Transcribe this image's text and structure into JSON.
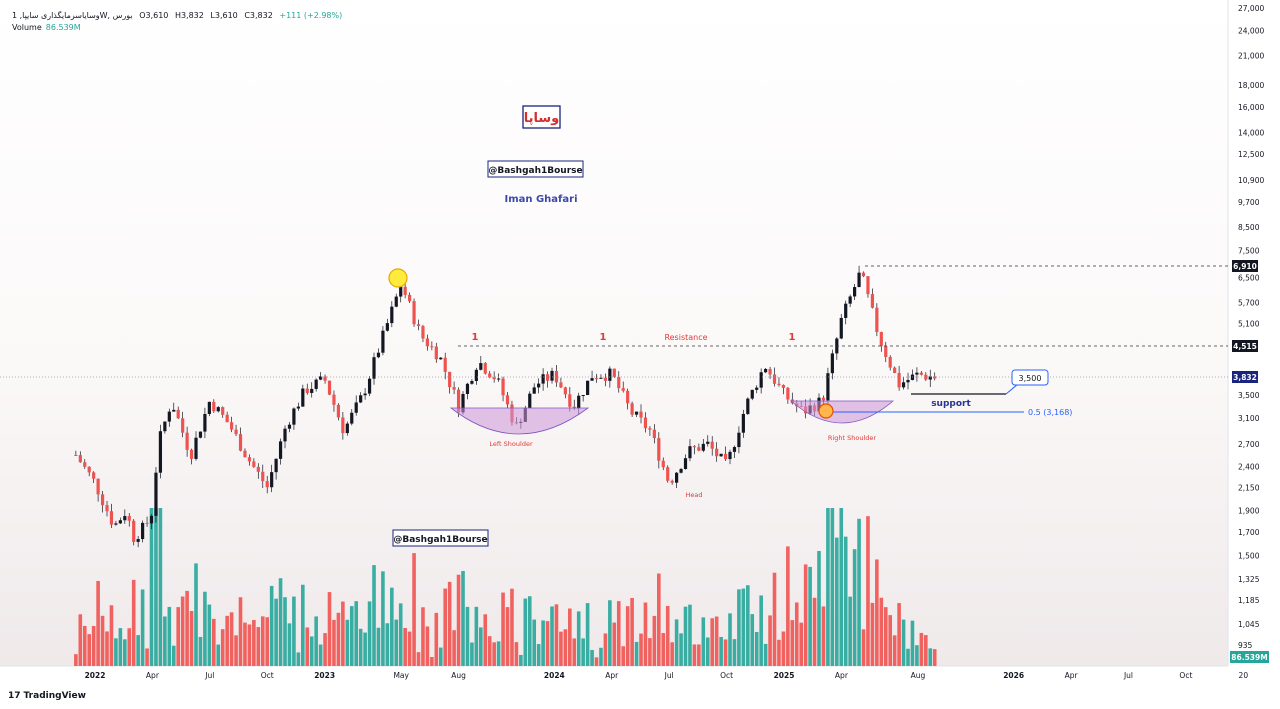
{
  "header": {
    "symbol": "وسایاسرمایگذاری سایپا, 1W, بورس",
    "open": "O3,610",
    "high": "H3,832",
    "low": "L3,610",
    "close": "C3,832",
    "change": "+111 (+2.98%)"
  },
  "volume": {
    "label": "Volume",
    "value": "86.539M"
  },
  "branding": {
    "tradingview": "TradingView",
    "tv_glyph": "17"
  },
  "colors": {
    "up": "#26a69a",
    "down": "#ef5350",
    "wick": "#131722",
    "accent_red": "#e53935",
    "accent_blue": "#2962ff",
    "purple": "#ce93d8",
    "yellow": "#ffeb3b",
    "navy": "#1a237e"
  },
  "annotations": {
    "logo_text": "وساپا",
    "handle_top": "@Bashgah1Bourse",
    "handle_bottom": "@Bashgah1Bourse",
    "author": "Iman Ghafari",
    "resistance": "Resistance",
    "support": "support",
    "left_shoulder": "Left Shoulder",
    "right_shoulder": "Right Shoulder",
    "head": "Head",
    "fib": "0.5 (3,168)",
    "callout": "3,500",
    "marker": "1"
  },
  "price_tags": {
    "high": "6,910",
    "resistance": "4,515",
    "last": "3,832",
    "volume": "86.539M"
  },
  "chart_data": {
    "type": "candlestick",
    "scale": "log",
    "timeframe": "1W",
    "price_ticks": [
      27000,
      24000,
      21000,
      18000,
      16000,
      14000,
      12500,
      10900,
      9700,
      8500,
      7500,
      6500,
      5700,
      5100,
      3500,
      3100,
      2700,
      2400,
      2150,
      1900,
      1700,
      1500,
      1325,
      1185,
      1045,
      935
    ],
    "time_ticks": [
      {
        "label": "2022",
        "date": "2022-01"
      },
      {
        "label": "Apr",
        "date": "2022-04"
      },
      {
        "label": "Jul",
        "date": "2022-07"
      },
      {
        "label": "Oct",
        "date": "2022-10"
      },
      {
        "label": "2023",
        "date": "2023-01"
      },
      {
        "label": "May",
        "date": "2023-05"
      },
      {
        "label": "Aug",
        "date": "2023-08"
      },
      {
        "label": "2024",
        "date": "2024-01"
      },
      {
        "label": "Apr",
        "date": "2024-04"
      },
      {
        "label": "Jul",
        "date": "2024-07"
      },
      {
        "label": "Oct",
        "date": "2024-10"
      },
      {
        "label": "2025",
        "date": "2025-01"
      },
      {
        "label": "Apr",
        "date": "2025-04"
      },
      {
        "label": "Aug",
        "date": "2025-08"
      },
      {
        "label": "2026",
        "date": "2026-01"
      },
      {
        "label": "Apr",
        "date": "2026-04"
      },
      {
        "label": "Jul",
        "date": "2026-07"
      },
      {
        "label": "Oct",
        "date": "2026-10"
      },
      {
        "label": "20",
        "date": "2027-01"
      }
    ],
    "levels": {
      "peak": 6910,
      "resistance": 4515,
      "last": 3832,
      "target": 3500,
      "fib_05": 3168
    },
    "close_path": [
      {
        "date": "2021-12",
        "close": 2550
      },
      {
        "date": "2022-01",
        "close": 2200
      },
      {
        "date": "2022-02",
        "close": 1750
      },
      {
        "date": "2022-02-20",
        "close": 1900
      },
      {
        "date": "2022-03",
        "close": 1650
      },
      {
        "date": "2022-03-20",
        "close": 1750
      },
      {
        "date": "2022-04",
        "close": 1900
      },
      {
        "date": "2022-04-10",
        "close": 2700
      },
      {
        "date": "2022-05",
        "close": 3400
      },
      {
        "date": "2022-06",
        "close": 2550
      },
      {
        "date": "2022-07",
        "close": 3400
      },
      {
        "date": "2022-08",
        "close": 3000
      },
      {
        "date": "2022-09",
        "close": 2500
      },
      {
        "date": "2022-10",
        "close": 2150
      },
      {
        "date": "2022-11",
        "close": 3000
      },
      {
        "date": "2022-12",
        "close": 3600
      },
      {
        "date": "2023-01",
        "close": 3800
      },
      {
        "date": "2023-02",
        "close": 2900
      },
      {
        "date": "2023-03",
        "close": 3500
      },
      {
        "date": "2023-04",
        "close": 4700
      },
      {
        "date": "2023-05",
        "close": 6300
      },
      {
        "date": "2023-06",
        "close": 4800
      },
      {
        "date": "2023-07",
        "close": 4300
      },
      {
        "date": "2023-08",
        "close": 3300
      },
      {
        "date": "2023-09",
        "close": 4200
      },
      {
        "date": "2023-10",
        "close": 3800
      },
      {
        "date": "2023-11",
        "close": 2950
      },
      {
        "date": "2023-12",
        "close": 3700
      },
      {
        "date": "2024-01",
        "close": 3900
      },
      {
        "date": "2024-02",
        "close": 3300
      },
      {
        "date": "2024-03",
        "close": 3900
      },
      {
        "date": "2024-04",
        "close": 3900
      },
      {
        "date": "2024-05",
        "close": 3200
      },
      {
        "date": "2024-06",
        "close": 2900
      },
      {
        "date": "2024-07",
        "close": 2200
      },
      {
        "date": "2024-08",
        "close": 2600
      },
      {
        "date": "2024-09",
        "close": 2700
      },
      {
        "date": "2024-10",
        "close": 2400
      },
      {
        "date": "2024-11",
        "close": 3300
      },
      {
        "date": "2024-12",
        "close": 4100
      },
      {
        "date": "2025-01",
        "close": 3500
      },
      {
        "date": "2025-02",
        "close": 3200
      },
      {
        "date": "2025-03",
        "close": 3400
      },
      {
        "date": "2025-04",
        "close": 5200
      },
      {
        "date": "2025-05",
        "close": 6700
      },
      {
        "date": "2025-06",
        "close": 4700
      },
      {
        "date": "2025-07",
        "close": 3700
      },
      {
        "date": "2025-08",
        "close": 3900
      },
      {
        "date": "2025-09",
        "close": 3832
      }
    ]
  }
}
